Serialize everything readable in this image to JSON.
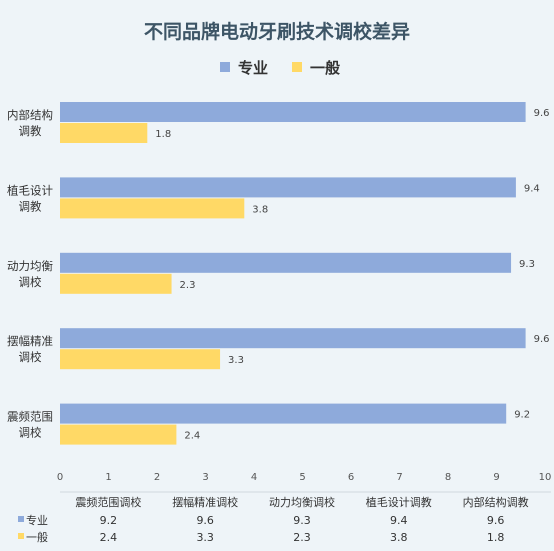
{
  "chart_data": {
    "type": "bar",
    "orientation": "horizontal",
    "title": "不同品牌电动牙刷技术调校差异",
    "categories": [
      "震频范围调校",
      "摆幅精准调校",
      "动力均衡调校",
      "植毛设计调教",
      "内部结构调教"
    ],
    "category_labels": [
      [
        "震频范围",
        "调校"
      ],
      [
        "摆幅精准",
        "调校"
      ],
      [
        "动力均衡",
        "调校"
      ],
      [
        "植毛设计",
        "调教"
      ],
      [
        "内部结构",
        "调教"
      ]
    ],
    "series": [
      {
        "name": "专业",
        "color": "#8eaadb",
        "values": [
          9.2,
          9.6,
          9.3,
          9.4,
          9.6
        ]
      },
      {
        "name": "一般",
        "color": "#ffd966",
        "values": [
          2.4,
          3.3,
          2.3,
          3.8,
          1.8
        ]
      }
    ],
    "xlim": [
      0,
      10
    ],
    "xticks": [
      0,
      1,
      2,
      3,
      4,
      5,
      6,
      7,
      8,
      9,
      10
    ],
    "legend_position": "top",
    "grid": false,
    "data_table": true
  }
}
